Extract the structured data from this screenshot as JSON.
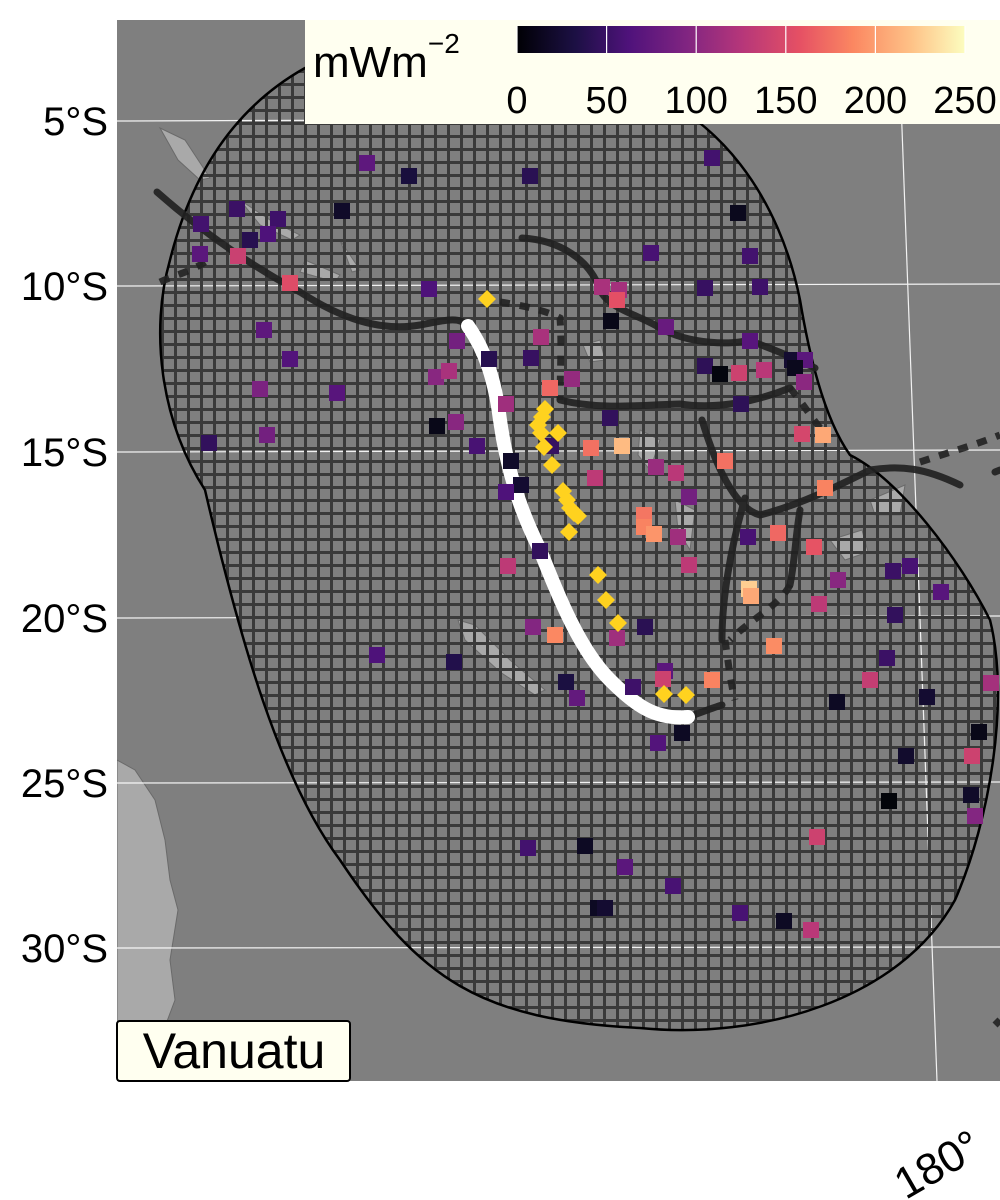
{
  "map": {
    "region_label": "Vanuatu",
    "lat_labels": [
      "5°S",
      "10°S",
      "15°S",
      "20°S",
      "25°S",
      "30°S"
    ],
    "lon_labels": [
      "180°"
    ],
    "colors": {
      "ocean": "#7f7f7f",
      "land": "#a9a9a9",
      "grid_hatch": "#3a3a3a",
      "plate_boundary": "#222222",
      "trench": "#ffffff",
      "volcano": "#ffd21f",
      "label_bg": "#fffff0"
    }
  },
  "colorbar": {
    "title": "mWm",
    "title_exponent": "−2",
    "ticks": [
      "0",
      "50",
      "100",
      "150",
      "200",
      "250"
    ],
    "range": [
      0,
      250
    ],
    "colormap": "magma"
  },
  "heat_flow_points": [
    [
      367,
      163,
      72
    ],
    [
      409,
      176,
      28
    ],
    [
      530,
      176,
      40
    ],
    [
      712,
      158,
      55
    ],
    [
      237,
      209,
      50
    ],
    [
      342,
      211,
      18
    ],
    [
      738,
      213,
      12
    ],
    [
      201,
      224,
      55
    ],
    [
      250,
      240,
      38
    ],
    [
      278,
      219,
      52
    ],
    [
      268,
      234,
      62
    ],
    [
      200,
      254,
      70
    ],
    [
      238,
      256,
      138
    ],
    [
      651,
      253,
      58
    ],
    [
      750,
      256,
      55
    ],
    [
      290,
      283,
      152
    ],
    [
      429,
      289,
      62
    ],
    [
      602,
      287,
      118
    ],
    [
      619,
      290,
      115
    ],
    [
      705,
      288,
      48
    ],
    [
      760,
      287,
      52
    ],
    [
      617,
      300,
      155
    ],
    [
      264,
      330,
      72
    ],
    [
      541,
      337,
      118
    ],
    [
      611,
      321,
      10
    ],
    [
      666,
      327,
      78
    ],
    [
      457,
      341,
      85
    ],
    [
      750,
      341,
      68
    ],
    [
      489,
      359,
      38
    ],
    [
      531,
      358,
      48
    ],
    [
      290,
      359,
      65
    ],
    [
      705,
      366,
      42
    ],
    [
      720,
      374,
      5
    ],
    [
      792,
      360,
      22
    ],
    [
      805,
      360,
      70
    ],
    [
      795,
      368,
      12
    ],
    [
      739,
      373,
      140
    ],
    [
      764,
      370,
      128
    ],
    [
      436,
      377,
      98
    ],
    [
      449,
      371,
      118
    ],
    [
      572,
      379,
      105
    ],
    [
      550,
      388,
      170
    ],
    [
      804,
      382,
      100
    ],
    [
      337,
      393,
      68
    ],
    [
      260,
      389,
      90
    ],
    [
      506,
      404,
      112
    ],
    [
      610,
      418,
      45
    ],
    [
      741,
      404,
      42
    ],
    [
      437,
      426,
      10
    ],
    [
      456,
      422,
      98
    ],
    [
      802,
      434,
      145
    ],
    [
      823,
      435,
      205
    ],
    [
      209,
      443,
      45
    ],
    [
      267,
      435,
      85
    ],
    [
      477,
      446,
      58
    ],
    [
      551,
      446,
      48
    ],
    [
      591,
      448,
      175
    ],
    [
      622,
      446,
      215
    ],
    [
      511,
      461,
      18
    ],
    [
      725,
      461,
      175
    ],
    [
      521,
      485,
      22
    ],
    [
      595,
      478,
      130
    ],
    [
      656,
      467,
      108
    ],
    [
      676,
      473,
      128
    ],
    [
      825,
      488,
      185
    ],
    [
      506,
      492,
      62
    ],
    [
      689,
      497,
      85
    ],
    [
      644,
      515,
      178
    ],
    [
      644,
      527,
      185
    ],
    [
      654,
      534,
      195
    ],
    [
      678,
      537,
      112
    ],
    [
      748,
      537,
      58
    ],
    [
      778,
      533,
      170
    ],
    [
      540,
      551,
      45
    ],
    [
      508,
      566,
      130
    ],
    [
      689,
      565,
      130
    ],
    [
      814,
      547,
      158
    ],
    [
      893,
      571,
      50
    ],
    [
      910,
      566,
      58
    ],
    [
      749,
      589,
      225
    ],
    [
      751,
      596,
      205
    ],
    [
      838,
      580,
      98
    ],
    [
      819,
      604,
      130
    ],
    [
      941,
      592,
      68
    ],
    [
      895,
      615,
      45
    ],
    [
      533,
      627,
      95
    ],
    [
      555,
      635,
      188
    ],
    [
      617,
      638,
      112
    ],
    [
      645,
      627,
      40
    ],
    [
      774,
      646,
      190
    ],
    [
      377,
      655,
      62
    ],
    [
      454,
      662,
      35
    ],
    [
      887,
      658,
      50
    ],
    [
      665,
      671,
      70
    ],
    [
      663,
      679,
      140
    ],
    [
      712,
      680,
      185
    ],
    [
      566,
      682,
      30
    ],
    [
      577,
      698,
      75
    ],
    [
      633,
      687,
      52
    ],
    [
      870,
      680,
      135
    ],
    [
      991,
      683,
      115
    ],
    [
      837,
      702,
      15
    ],
    [
      927,
      697,
      22
    ],
    [
      682,
      733,
      15
    ],
    [
      658,
      743,
      65
    ],
    [
      979,
      732,
      10
    ],
    [
      972,
      756,
      140
    ],
    [
      906,
      756,
      20
    ],
    [
      971,
      795,
      18
    ],
    [
      889,
      801,
      3
    ],
    [
      975,
      816,
      95
    ],
    [
      817,
      837,
      140
    ],
    [
      528,
      848,
      55
    ],
    [
      585,
      846,
      15
    ],
    [
      625,
      867,
      70
    ],
    [
      673,
      886,
      58
    ],
    [
      598,
      908,
      15
    ],
    [
      605,
      908,
      22
    ],
    [
      740,
      913,
      58
    ],
    [
      784,
      921,
      15
    ],
    [
      811,
      930,
      128
    ]
  ],
  "volcano_points": [
    [
      487,
      299
    ],
    [
      545,
      409
    ],
    [
      542,
      417
    ],
    [
      538,
      425
    ],
    [
      541,
      433
    ],
    [
      558,
      433
    ],
    [
      544,
      447
    ],
    [
      552,
      465
    ],
    [
      563,
      491
    ],
    [
      567,
      500
    ],
    [
      570,
      508
    ],
    [
      574,
      513
    ],
    [
      578,
      516
    ],
    [
      569,
      532
    ],
    [
      598,
      575
    ],
    [
      606,
      600
    ],
    [
      618,
      623
    ],
    [
      664,
      694
    ],
    [
      686,
      695
    ]
  ]
}
